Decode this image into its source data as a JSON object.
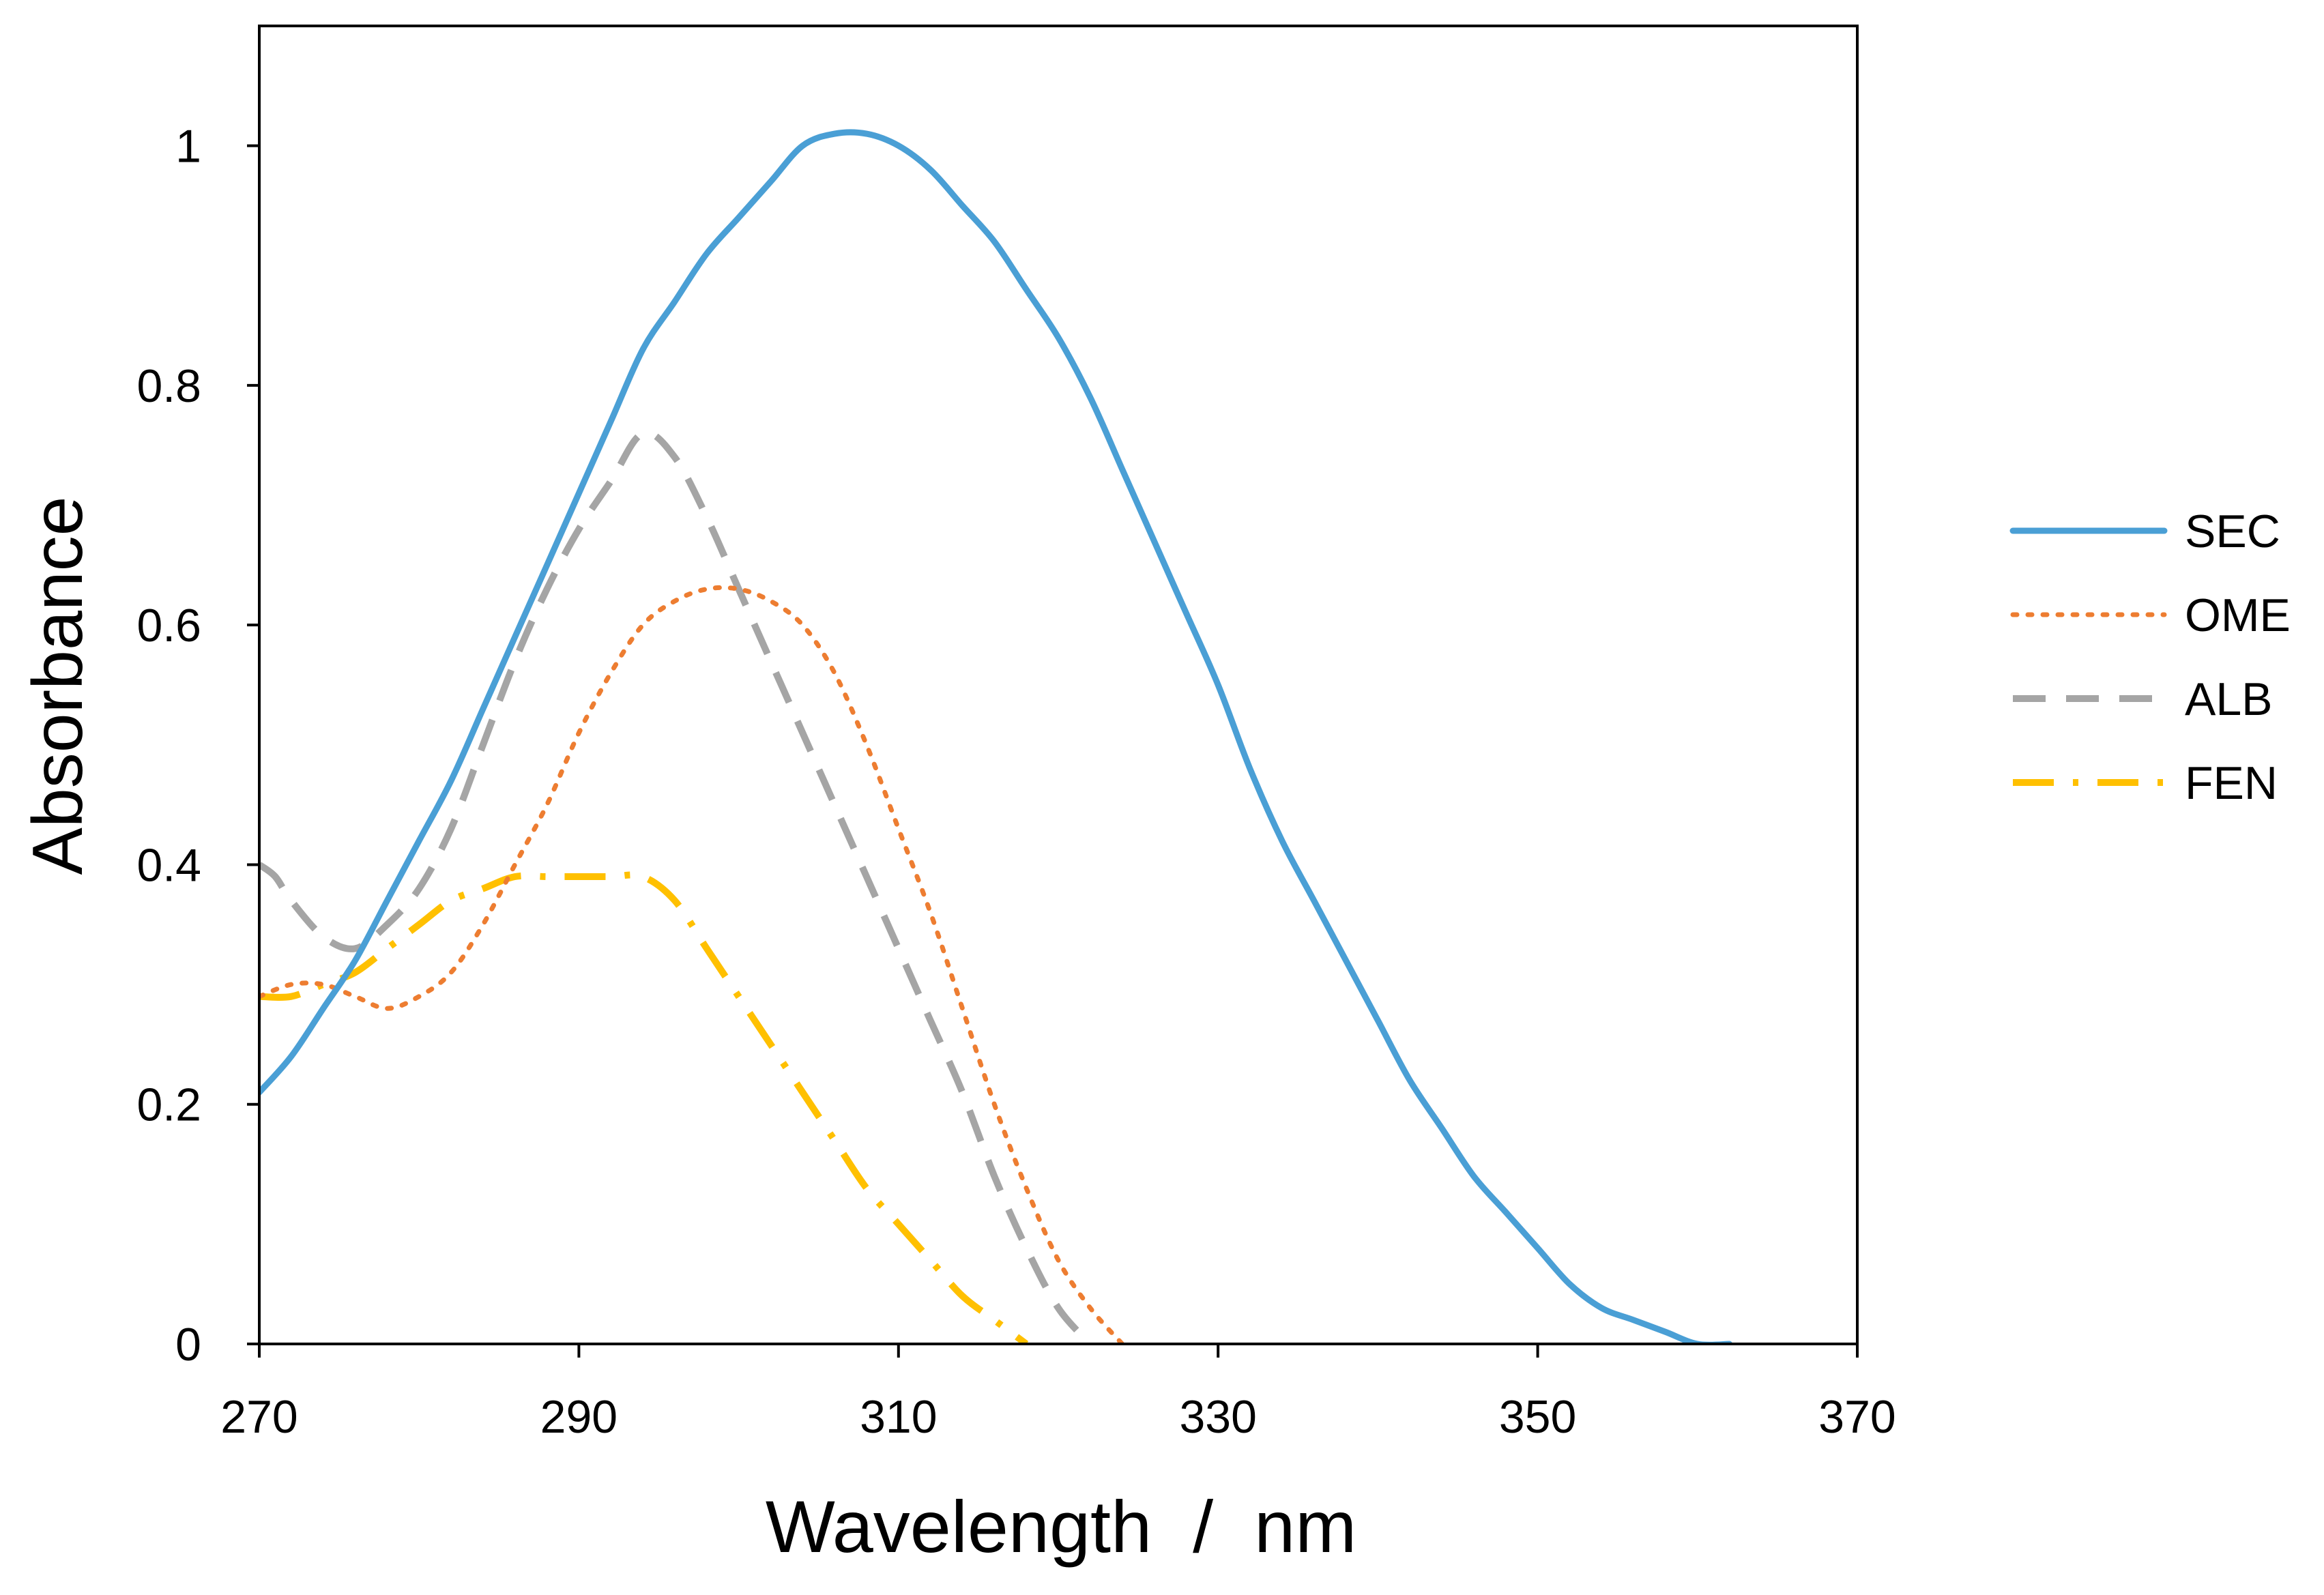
{
  "chart_data": {
    "type": "line",
    "title": "",
    "xlabel": "Wavelength  /  nm",
    "ylabel": "Absorbance",
    "xlim": [
      270,
      370
    ],
    "ylim": [
      0,
      1.1
    ],
    "xticks": [
      270,
      290,
      310,
      330,
      350,
      370
    ],
    "xtick_labels": [
      "270",
      "290",
      "310",
      "330",
      "350",
      "370"
    ],
    "yticks": [
      0,
      0.2,
      0.4,
      0.6,
      0.8,
      1
    ],
    "ytick_labels": [
      "0",
      "0.2",
      "0.4",
      "0.6",
      "0.8",
      "1"
    ],
    "grid": false,
    "legend_position": "right",
    "series": [
      {
        "name": "SEC",
        "color": "#4A9FD5",
        "style": "solid",
        "x": [
          270,
          272,
          274,
          276,
          278,
          280,
          282,
          284,
          286,
          288,
          290,
          292,
          294,
          296,
          298,
          300,
          302,
          304,
          306,
          308,
          310,
          312,
          314,
          316,
          318,
          320,
          322,
          324,
          326,
          328,
          330,
          332,
          334,
          336,
          338,
          340,
          342,
          344,
          346,
          348,
          350,
          352,
          354,
          356,
          358,
          360,
          362
        ],
        "y": [
          0.21,
          0.24,
          0.28,
          0.32,
          0.37,
          0.42,
          0.47,
          0.53,
          0.59,
          0.65,
          0.71,
          0.77,
          0.83,
          0.87,
          0.91,
          0.94,
          0.97,
          1.0,
          1.01,
          1.01,
          1.0,
          0.98,
          0.95,
          0.92,
          0.88,
          0.84,
          0.79,
          0.73,
          0.67,
          0.61,
          0.55,
          0.48,
          0.42,
          0.37,
          0.32,
          0.27,
          0.22,
          0.18,
          0.14,
          0.11,
          0.08,
          0.05,
          0.03,
          0.02,
          0.01,
          0.0,
          0.0
        ]
      },
      {
        "name": "OME",
        "color": "#ED7D31",
        "style": "dotted",
        "x": [
          270,
          272,
          274,
          276,
          278,
          280,
          282,
          284,
          286,
          288,
          290,
          292,
          294,
          296,
          298,
          300,
          302,
          304,
          306,
          308,
          310,
          312,
          314,
          316,
          318,
          320,
          322,
          324
        ],
        "y": [
          0.29,
          0.3,
          0.3,
          0.29,
          0.28,
          0.29,
          0.31,
          0.35,
          0.4,
          0.45,
          0.51,
          0.56,
          0.6,
          0.62,
          0.63,
          0.63,
          0.62,
          0.6,
          0.56,
          0.5,
          0.43,
          0.36,
          0.28,
          0.2,
          0.13,
          0.07,
          0.03,
          0.0
        ]
      },
      {
        "name": "ALB",
        "color": "#A5A5A5",
        "style": "dashed",
        "x": [
          270,
          271,
          272,
          274,
          276,
          278,
          280,
          282,
          284,
          286,
          288,
          290,
          292,
          294,
          296,
          298,
          300,
          302,
          304,
          306,
          308,
          310,
          312,
          314,
          316,
          318,
          320,
          322
        ],
        "y": [
          0.4,
          0.39,
          0.37,
          0.34,
          0.33,
          0.35,
          0.38,
          0.43,
          0.5,
          0.57,
          0.63,
          0.68,
          0.72,
          0.76,
          0.74,
          0.69,
          0.63,
          0.57,
          0.51,
          0.45,
          0.39,
          0.33,
          0.27,
          0.21,
          0.14,
          0.08,
          0.03,
          0.0
        ]
      },
      {
        "name": "FEN",
        "color": "#FFC000",
        "style": "dashdot",
        "x": [
          270,
          272,
          274,
          276,
          278,
          280,
          282,
          284,
          286,
          288,
          290,
          292,
          294,
          296,
          298,
          300,
          302,
          304,
          306,
          308,
          310,
          312,
          314,
          316,
          318
        ],
        "y": [
          0.29,
          0.29,
          0.3,
          0.31,
          0.33,
          0.35,
          0.37,
          0.38,
          0.39,
          0.39,
          0.39,
          0.39,
          0.39,
          0.37,
          0.33,
          0.29,
          0.25,
          0.21,
          0.17,
          0.13,
          0.1,
          0.07,
          0.04,
          0.02,
          0.0
        ]
      }
    ]
  }
}
